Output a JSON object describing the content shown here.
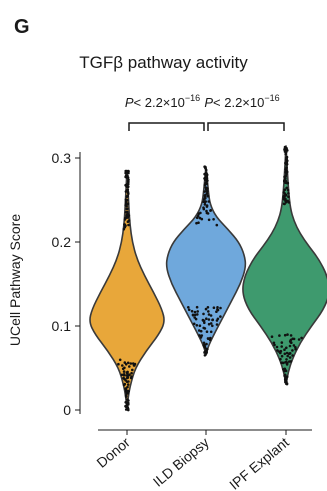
{
  "panel_label": "G",
  "chart_data": {
    "type": "violin",
    "title": "TGFβ pathway activity",
    "ylabel": "UCell Pathway Score",
    "xlabel": "",
    "ylim": [
      0,
      0.32
    ],
    "yticks": [
      0,
      0.1,
      0.2,
      0.3
    ],
    "ytick_labels": [
      "0",
      "0.1",
      "0.2",
      "0.3"
    ],
    "categories": [
      "Donor",
      "ILD Biopsy",
      "IPF Explant"
    ],
    "colors": [
      "#E8A73A",
      "#6FA8DC",
      "#3E9A6E"
    ],
    "series": [
      {
        "category": "Donor",
        "min": 0.0,
        "max": 0.285,
        "profile": [
          [
            0.0,
            0.0
          ],
          [
            0.015,
            0.03
          ],
          [
            0.03,
            0.09
          ],
          [
            0.05,
            0.22
          ],
          [
            0.07,
            0.5
          ],
          [
            0.09,
            0.84
          ],
          [
            0.105,
            1.0
          ],
          [
            0.12,
            0.92
          ],
          [
            0.14,
            0.7
          ],
          [
            0.16,
            0.46
          ],
          [
            0.18,
            0.26
          ],
          [
            0.2,
            0.14
          ],
          [
            0.22,
            0.08
          ],
          [
            0.24,
            0.05
          ],
          [
            0.26,
            0.03
          ],
          [
            0.285,
            0.0
          ]
        ]
      },
      {
        "category": "ILD Biopsy",
        "min": 0.065,
        "max": 0.29,
        "profile": [
          [
            0.065,
            0.0
          ],
          [
            0.075,
            0.05
          ],
          [
            0.09,
            0.2
          ],
          [
            0.11,
            0.42
          ],
          [
            0.13,
            0.64
          ],
          [
            0.15,
            0.86
          ],
          [
            0.17,
            1.0
          ],
          [
            0.185,
            0.96
          ],
          [
            0.2,
            0.82
          ],
          [
            0.215,
            0.55
          ],
          [
            0.23,
            0.25
          ],
          [
            0.245,
            0.1
          ],
          [
            0.26,
            0.06
          ],
          [
            0.275,
            0.03
          ],
          [
            0.29,
            0.0
          ]
        ]
      },
      {
        "category": "IPF Explant",
        "min": 0.03,
        "max": 0.315,
        "profile": [
          [
            0.03,
            0.0
          ],
          [
            0.045,
            0.05
          ],
          [
            0.06,
            0.14
          ],
          [
            0.08,
            0.32
          ],
          [
            0.1,
            0.58
          ],
          [
            0.12,
            0.86
          ],
          [
            0.14,
            1.0
          ],
          [
            0.16,
            0.94
          ],
          [
            0.18,
            0.74
          ],
          [
            0.195,
            0.52
          ],
          [
            0.21,
            0.32
          ],
          [
            0.225,
            0.18
          ],
          [
            0.24,
            0.1
          ],
          [
            0.26,
            0.06
          ],
          [
            0.285,
            0.03
          ],
          [
            0.315,
            0.0
          ]
        ]
      }
    ],
    "annotations": [
      {
        "from": "Donor",
        "to": "ILD Biopsy",
        "p_prefix": "P",
        "p_text": "< 2.2×10",
        "p_exp": "−16"
      },
      {
        "from": "ILD Biopsy",
        "to": "IPF Explant",
        "p_prefix": "P",
        "p_text": "< 2.2×10",
        "p_exp": "−16"
      }
    ]
  }
}
